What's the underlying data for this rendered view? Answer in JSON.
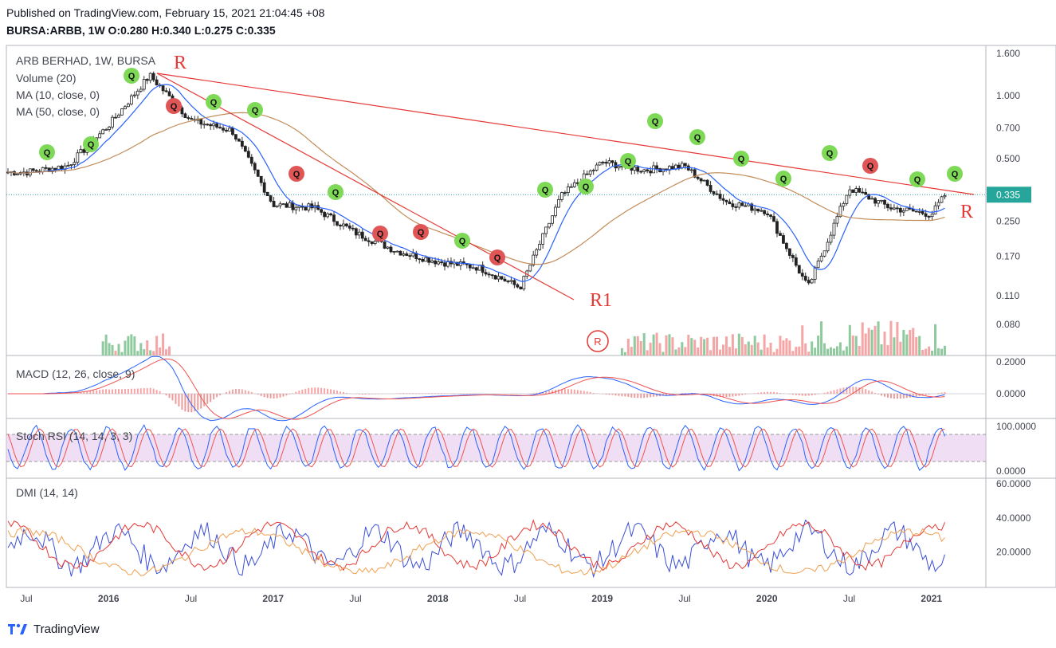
{
  "header": {
    "published": "Published on TradingView.com, February 15, 2021 21:04:45 +08",
    "symbol_line": "BURSA:ARBB, 1W O:0.280 H:0.340 L:0.275 C:0.335"
  },
  "legend": {
    "main": "ARB BERHAD, 1W, BURSA",
    "volume": "Volume (20)",
    "ma10": "MA (10, close, 0)",
    "ma50": "MA (50, close, 0)",
    "macd": "MACD (12, 26, close, 9)",
    "stoch": "Stoch RSI (14, 14, 3, 3)",
    "dmi": "DMI (14, 14)"
  },
  "annotations": {
    "resistance_label": "R",
    "resistance1_label": "R1",
    "badge_q": "Q",
    "badge_r": "R"
  },
  "brand": {
    "name": "TradingView"
  },
  "colors": {
    "up": "#26a69a",
    "down": "#ef5350",
    "trendline": "#e53935",
    "ma10": "#2962ff",
    "ma50": "#c28c5a",
    "vol_up": "#8fc99e",
    "vol_down": "#f4a5a5",
    "q_green": "#7ed957",
    "q_red": "#e05555",
    "stoch_band": "#e6c8ec",
    "dmi_plus": "#3b4fd8",
    "dmi_minus": "#e53935",
    "adx": "#f0a050"
  },
  "chart_data": {
    "type": "line",
    "title": "ARB BERHAD, 1W, BURSA",
    "scale": "log",
    "last_price": "0.335",
    "x_tick_labels": [
      "Jul",
      "2016",
      "Jul",
      "2017",
      "Jul",
      "2018",
      "Jul",
      "2019",
      "Jul",
      "2020",
      "Jul",
      "2021"
    ],
    "x": [
      "2015-07",
      "2015-10",
      "2016-01",
      "2016-04",
      "2016-07",
      "2016-10",
      "2017-01",
      "2017-04",
      "2017-07",
      "2017-10",
      "2018-01",
      "2018-04",
      "2018-07",
      "2018-10",
      "2019-01",
      "2019-04",
      "2019-07",
      "2019-10",
      "2020-01",
      "2020-04",
      "2020-07",
      "2020-10",
      "2021-01",
      "2021-02"
    ],
    "series": [
      {
        "name": "close",
        "values": [
          0.43,
          0.46,
          0.72,
          1.25,
          0.76,
          0.68,
          0.3,
          0.29,
          0.22,
          0.18,
          0.16,
          0.15,
          0.12,
          0.33,
          0.48,
          0.44,
          0.46,
          0.31,
          0.28,
          0.12,
          0.36,
          0.29,
          0.27,
          0.335
        ]
      }
    ],
    "panes": {
      "price_axis": [
        "1.600",
        "1.000",
        "0.700",
        "0.500",
        "0.250",
        "0.170",
        "0.110",
        "0.080"
      ],
      "macd_axis": [
        "0.2000",
        "0.0000"
      ],
      "stoch_axis": [
        "100.0000",
        "0.0000"
      ],
      "dmi_axis": [
        "60.0000",
        "40.0000",
        "20.0000"
      ]
    }
  }
}
